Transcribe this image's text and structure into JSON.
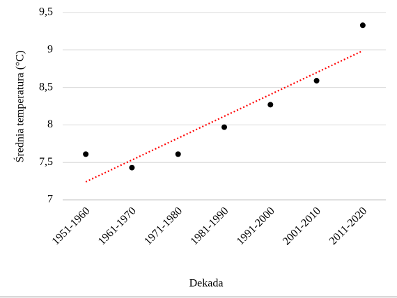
{
  "chart_data": {
    "type": "scatter",
    "x_label": "Dekada",
    "y_label": "Średnia temperatura  (°C)",
    "categories": [
      "1951-1960",
      "1961-1970",
      "1971-1980",
      "1981-1990",
      "1991-2000",
      "2001-2010",
      "2011-2020"
    ],
    "values": [
      7.61,
      7.43,
      7.61,
      7.97,
      8.27,
      8.59,
      9.33
    ],
    "color": "#000000",
    "trendline": {
      "color": "#ff0000",
      "start": 7.24,
      "end": 8.99
    },
    "ylim": [
      7,
      9.5
    ],
    "yticks": [
      7,
      {
        "value": 7.5,
        "label": "7,5"
      },
      8,
      {
        "value": 8.5,
        "label": "8,5"
      },
      9,
      {
        "value": 9.5,
        "label": "9,5"
      }
    ],
    "grid": true
  }
}
